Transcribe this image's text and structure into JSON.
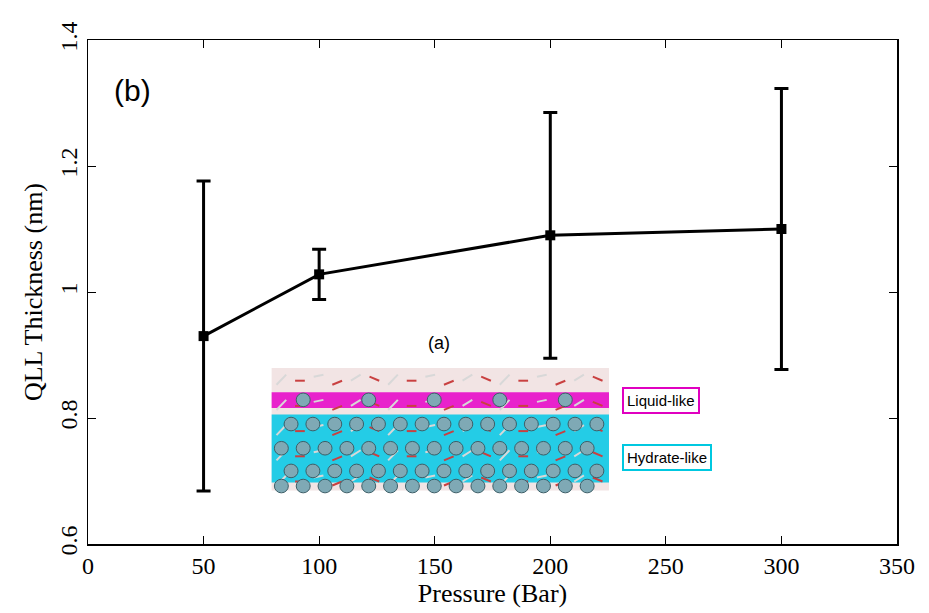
{
  "chart_data": {
    "type": "line",
    "x_label": "Pressure (Bar)",
    "y_label": "QLL Thickness (nm)",
    "x": [
      50,
      100,
      200,
      300
    ],
    "values": [
      0.93,
      1.028,
      1.09,
      1.1
    ],
    "error": [
      0.246,
      0.04,
      0.195,
      0.223
    ],
    "color": "#000000",
    "marker": "square",
    "line_style": "solid",
    "xlim": [
      0,
      350
    ],
    "xticks": [
      0,
      50,
      100,
      150,
      200,
      250,
      300,
      350
    ],
    "ylim": [
      0.6,
      1.4
    ],
    "yticks": [
      0.6,
      0.8,
      1,
      1.2,
      1.4
    ],
    "grid": false,
    "annotations": [
      "(b)",
      "(a)",
      "Liquid-like",
      "Hydrate-like"
    ]
  }
}
